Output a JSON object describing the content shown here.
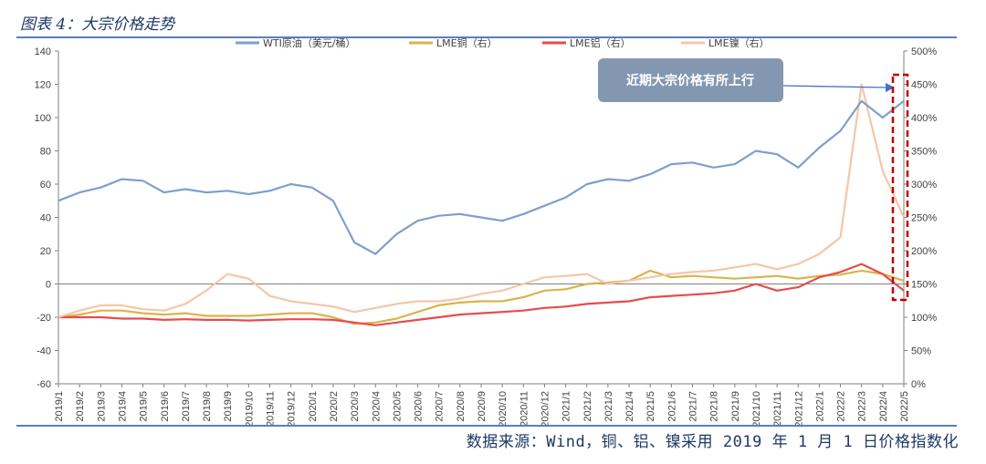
{
  "figure": {
    "title": "图表 4：大宗价格走势",
    "source": "数据来源：Wind，铜、铝、镍采用 2019 年 1 月 1 日价格指数化"
  },
  "chart_data": {
    "type": "line",
    "x": [
      "2019/1",
      "2019/2",
      "2019/3",
      "2019/4",
      "2019/5",
      "2019/6",
      "2019/7",
      "2019/8",
      "2019/9",
      "2019/10",
      "2019/11",
      "2019/12",
      "2020/1",
      "2020/2",
      "2020/3",
      "2020/4",
      "2020/5",
      "2020/6",
      "2020/7",
      "2020/8",
      "2020/9",
      "2020/10",
      "2020/11",
      "2020/12",
      "2021/1",
      "2021/2",
      "2021/3",
      "2021/4",
      "2021/5",
      "2021/6",
      "2021/7",
      "2021/8",
      "2021/9",
      "2021/10",
      "2021/11",
      "2021/12",
      "2022/1",
      "2022/2",
      "2022/3",
      "2022/4",
      "2022/5"
    ],
    "left_axis": {
      "ylim": [
        -60,
        140
      ],
      "ticks": [
        "-60",
        "-40",
        "-20",
        "0",
        "20",
        "40",
        "60",
        "80",
        "100",
        "120",
        "140"
      ]
    },
    "right_axis": {
      "ylim": [
        0,
        500
      ],
      "ticks": [
        "0%",
        "50%",
        "100%",
        "150%",
        "200%",
        "250%",
        "300%",
        "350%",
        "400%",
        "450%",
        "500%"
      ]
    },
    "legend_position": "top",
    "series": [
      {
        "name": "WTI原油（美元/桶）",
        "axis": "left",
        "color": "#7f9fcc",
        "values": [
          50,
          55,
          58,
          63,
          62,
          55,
          57,
          55,
          56,
          54,
          56,
          60,
          58,
          50,
          25,
          18,
          30,
          38,
          41,
          42,
          40,
          38,
          42,
          47,
          52,
          60,
          63,
          62,
          66,
          72,
          73,
          70,
          72,
          80,
          78,
          70,
          82,
          92,
          110,
          100,
          110
        ]
      },
      {
        "name": "LME铜（右）",
        "axis": "right",
        "color": "#d8b54a",
        "values": [
          100,
          104,
          110,
          110,
          106,
          104,
          106,
          102,
          102,
          102,
          104,
          106,
          106,
          100,
          90,
          92,
          98,
          108,
          118,
          122,
          124,
          124,
          130,
          140,
          142,
          150,
          152,
          155,
          170,
          160,
          162,
          160,
          158,
          160,
          162,
          158,
          162,
          164,
          170,
          165,
          155
        ]
      },
      {
        "name": "LME铝（右）",
        "axis": "right",
        "color": "#e84b4b",
        "values": [
          100,
          100,
          100,
          98,
          98,
          96,
          97,
          96,
          96,
          95,
          96,
          97,
          97,
          96,
          92,
          88,
          92,
          96,
          100,
          104,
          106,
          108,
          110,
          114,
          116,
          120,
          122,
          124,
          130,
          132,
          134,
          136,
          140,
          150,
          140,
          145,
          160,
          168,
          180,
          165,
          140
        ]
      },
      {
        "name": "LME镍（右）",
        "axis": "right",
        "color": "#f4c7a8",
        "values": [
          100,
          110,
          118,
          118,
          112,
          110,
          120,
          140,
          165,
          158,
          132,
          124,
          120,
          116,
          108,
          114,
          120,
          124,
          124,
          128,
          135,
          140,
          150,
          160,
          162,
          165,
          150,
          155,
          160,
          165,
          168,
          170,
          175,
          180,
          172,
          180,
          195,
          220,
          450,
          320,
          250
        ]
      }
    ]
  },
  "callout": {
    "text": "近期大宗价格有所上行"
  }
}
